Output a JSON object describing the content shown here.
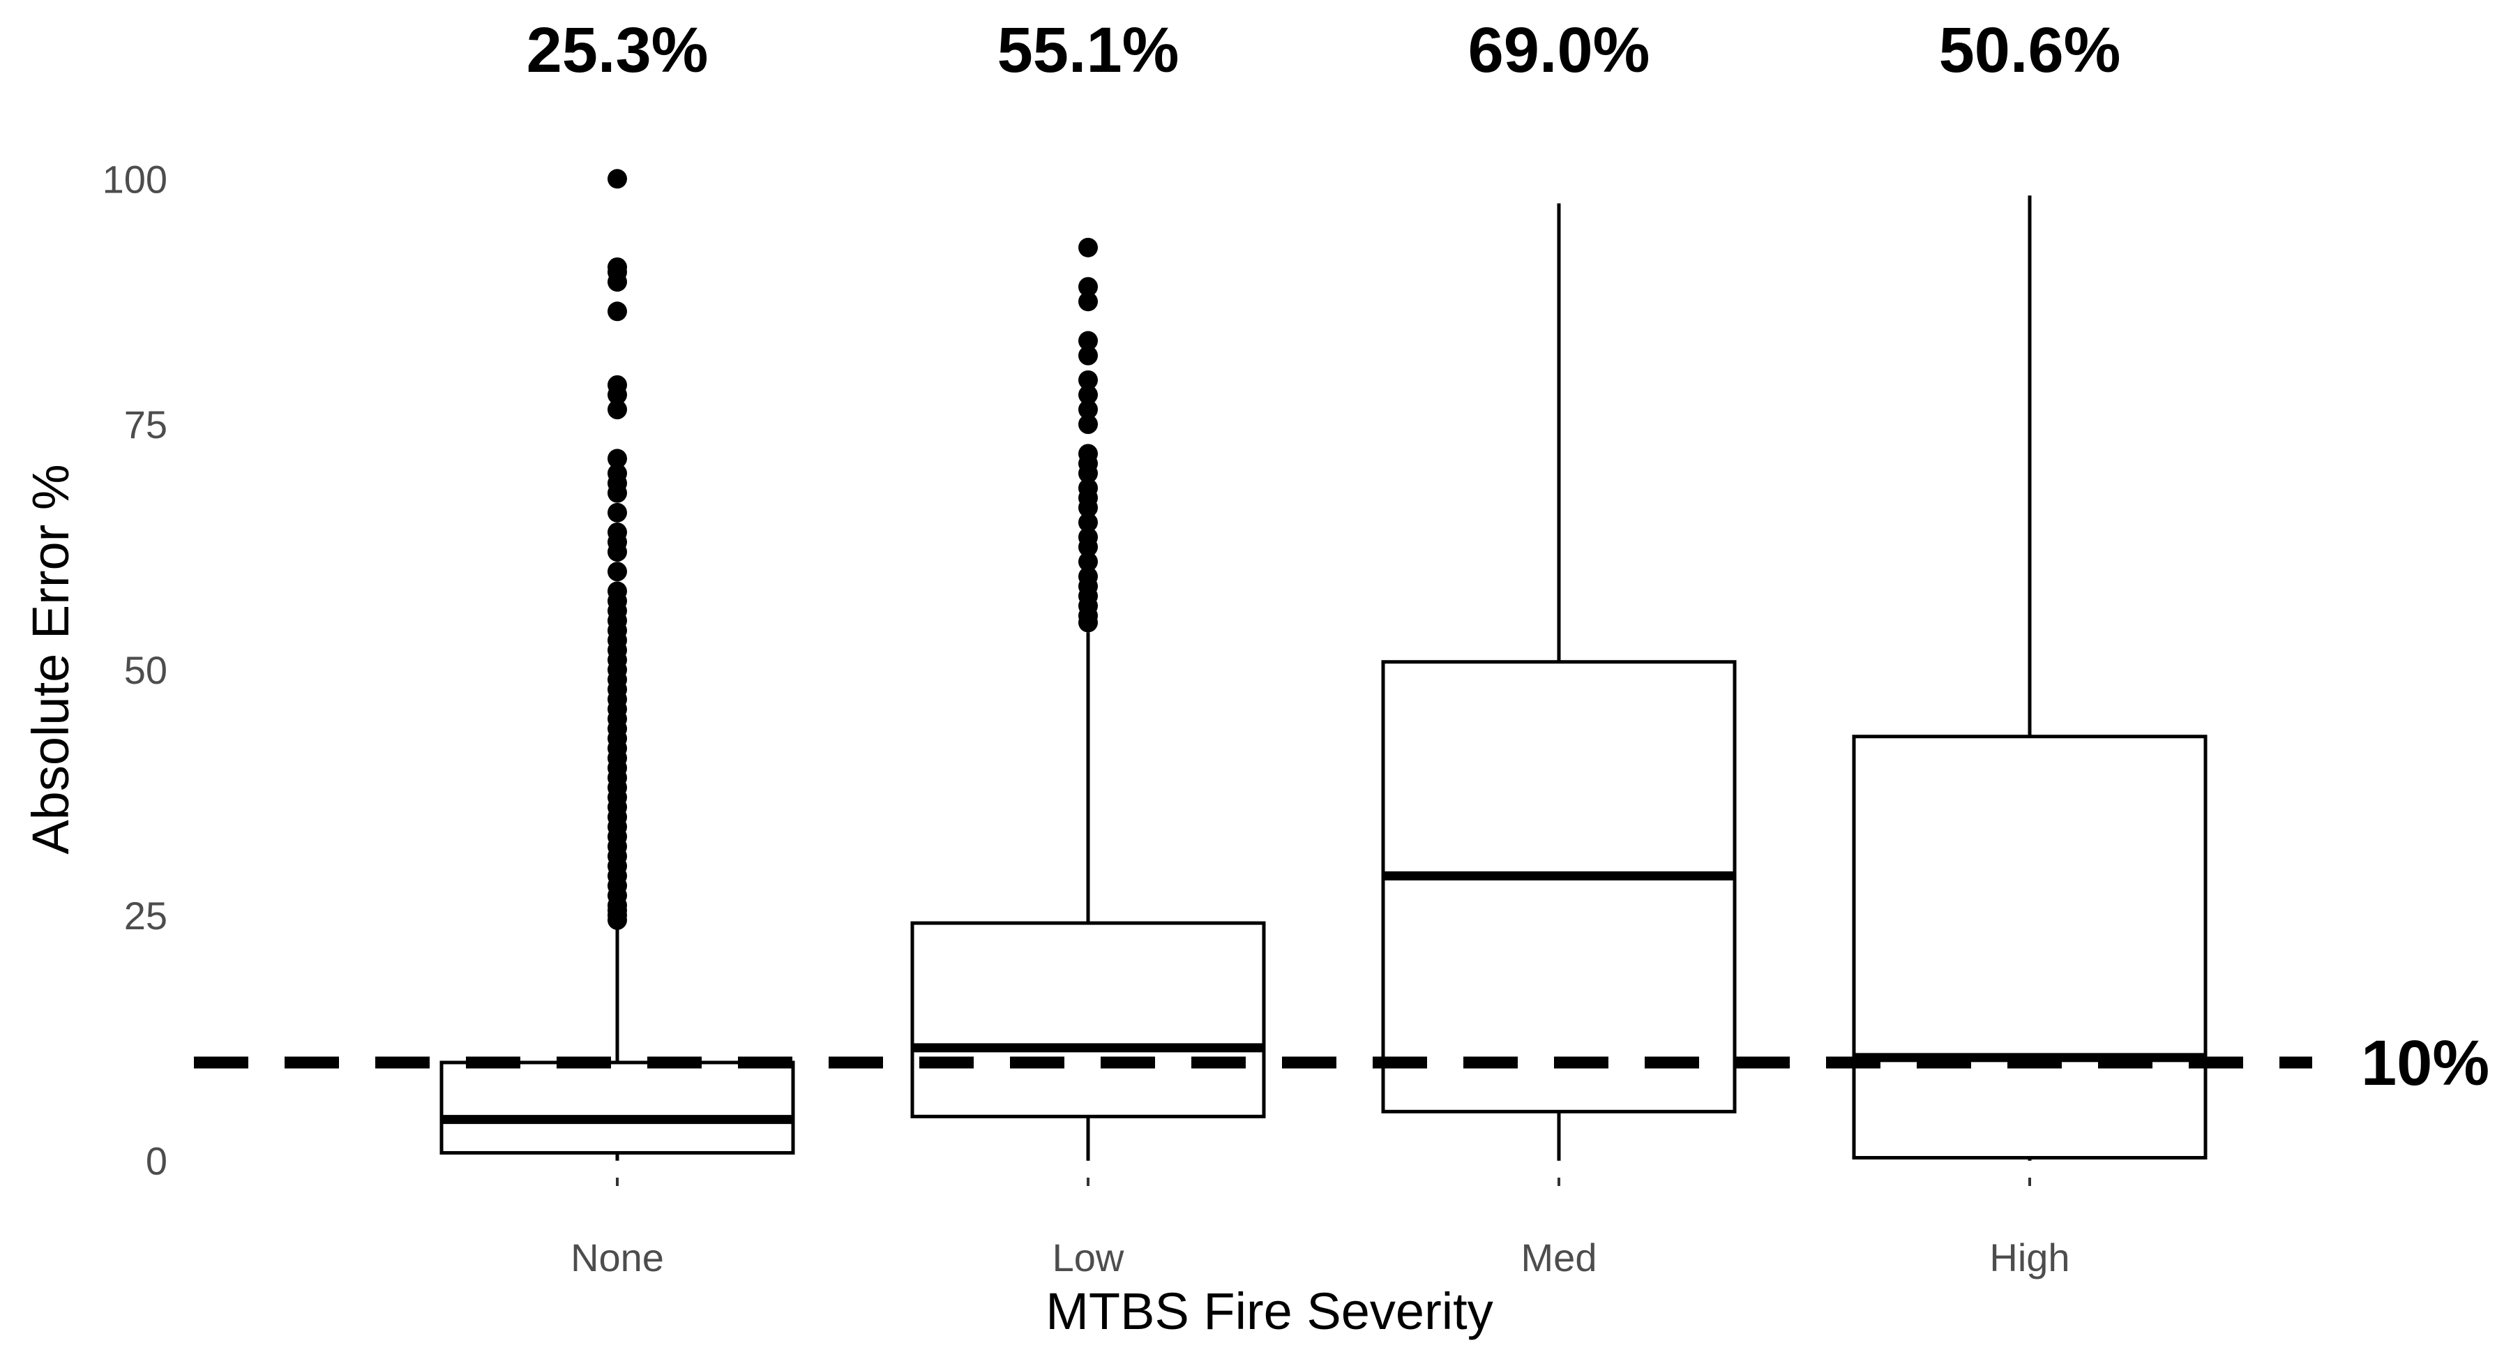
{
  "chart_data": {
    "type": "boxplot",
    "title": "",
    "xlabel": "MTBS Fire Severity",
    "ylabel": "Absolute Error %",
    "ylim": [
      -4,
      104
    ],
    "y_ticks": [
      0,
      25,
      50,
      75,
      100
    ],
    "grid": false,
    "categories": [
      "None",
      "Low",
      "Med",
      "High"
    ],
    "percent_within_threshold": [
      "25.3%",
      "55.1%",
      "69.0%",
      "50.6%"
    ],
    "reference_line": {
      "value": 10,
      "label": "10%",
      "style": "dashed"
    },
    "boxes": [
      {
        "category": "None",
        "whisker_low": 0,
        "q1": 0.8,
        "median": 4.2,
        "q3": 10.0,
        "whisker_high": 24.0,
        "outliers": [
          24.5,
          25,
          25.5,
          26,
          27,
          28,
          29,
          30,
          31,
          32,
          33,
          34,
          35,
          36,
          37,
          38,
          39,
          40,
          41,
          42,
          43,
          44,
          45,
          46,
          47,
          48,
          49,
          50,
          51,
          52,
          53,
          54,
          55,
          56,
          57,
          58,
          60,
          62,
          63,
          64,
          66,
          68,
          69,
          70,
          71.5,
          76.5,
          78,
          79,
          86.5,
          89.5,
          90.5,
          91,
          100
        ]
      },
      {
        "category": "Low",
        "whisker_low": 0,
        "q1": 4.5,
        "median": 11.5,
        "q3": 24.2,
        "whisker_high": 53.8,
        "outliers": [
          54.8,
          55.5,
          56.5,
          57.5,
          58.5,
          59.5,
          61,
          62.5,
          63.5,
          65,
          66.5,
          67.5,
          68.5,
          70,
          71,
          72,
          75,
          76.5,
          78,
          79.5,
          82,
          83.5,
          87.5,
          89,
          93
        ]
      },
      {
        "category": "Med",
        "whisker_low": 0,
        "q1": 5.0,
        "median": 29.0,
        "q3": 50.8,
        "whisker_high": 97.5,
        "outliers": []
      },
      {
        "category": "High",
        "whisker_low": 0,
        "q1": 0.3,
        "median": 10.5,
        "q3": 43.2,
        "whisker_high": 98.3,
        "outliers": []
      }
    ]
  }
}
